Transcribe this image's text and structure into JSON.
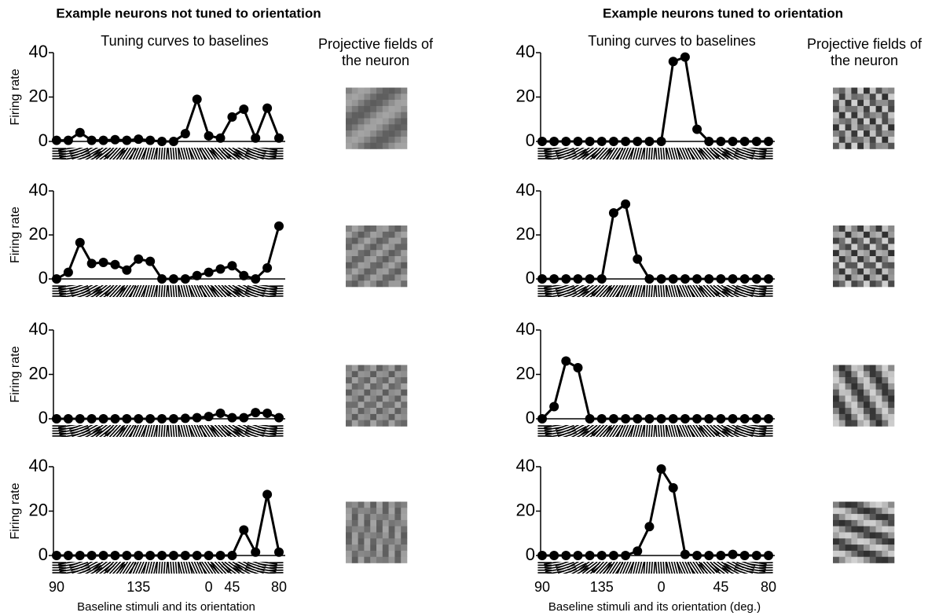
{
  "panels": [
    {
      "title": "Example neurons not tuned to orientation",
      "subtitle": "Tuning curves to baselines",
      "fields_title": [
        "Projective fields of",
        "the neuron"
      ]
    },
    {
      "title": "Example neurons tuned to orientation",
      "subtitle": "Tuning curves to baselines",
      "fields_title": [
        "Projective fields of",
        "the neuron"
      ]
    }
  ],
  "chart_data": [
    {
      "type": "line",
      "ylabel": "Firing rate",
      "color": "#000000",
      "ylim": [
        0,
        40
      ],
      "yticks": [
        0,
        20,
        40
      ],
      "categories": [
        null,
        null,
        null,
        null,
        null,
        null,
        null,
        null,
        null,
        null,
        null,
        null,
        null,
        null,
        null,
        null,
        null,
        null,
        null,
        null
      ],
      "values": [
        0.5,
        0.5,
        4,
        0.5,
        0.5,
        0.8,
        0.5,
        1,
        0.5,
        0,
        0,
        3.5,
        19,
        2.5,
        1.5,
        11,
        14.5,
        1.5,
        15,
        1.5
      ]
    },
    {
      "type": "line",
      "ylabel": "Firing rate",
      "color": "#000000",
      "ylim": [
        0,
        40
      ],
      "yticks": [
        0,
        20,
        40
      ],
      "categories": [
        null,
        null,
        null,
        null,
        null,
        null,
        null,
        null,
        null,
        null,
        null,
        null,
        null,
        null,
        null,
        null,
        null,
        null,
        null,
        null
      ],
      "values": [
        0,
        3,
        16.5,
        7,
        7.5,
        6.5,
        4,
        9,
        8,
        0,
        0,
        0,
        1.5,
        3,
        4.5,
        6,
        1.5,
        0,
        5,
        24
      ]
    },
    {
      "type": "line",
      "ylabel": "Firing rate",
      "color": "#000000",
      "ylim": [
        0,
        40
      ],
      "yticks": [
        0,
        20,
        40
      ],
      "categories": [
        null,
        null,
        null,
        null,
        null,
        null,
        null,
        null,
        null,
        null,
        null,
        null,
        null,
        null,
        null,
        null,
        null,
        null,
        null,
        null
      ],
      "values": [
        0,
        0,
        0,
        0,
        0,
        0,
        0,
        0,
        0,
        0,
        0,
        0.2,
        0.5,
        1,
        2.5,
        0.5,
        0.5,
        2.8,
        2.5,
        0.5
      ]
    },
    {
      "type": "line",
      "ylabel": "Firing rate",
      "xlabel": "Baseline stimuli and its orientation",
      "color": "#000000",
      "ylim": [
        0,
        40
      ],
      "yticks": [
        0,
        20,
        40
      ],
      "categories": [
        "90",
        null,
        null,
        null,
        null,
        null,
        null,
        "135",
        null,
        null,
        null,
        null,
        null,
        "0",
        null,
        "45",
        null,
        null,
        null,
        "80"
      ],
      "values": [
        0,
        0,
        0,
        0,
        0,
        0,
        0,
        0,
        0,
        0,
        0,
        0,
        0,
        0,
        0,
        0,
        11.5,
        1.5,
        27.5,
        1.5
      ]
    },
    {
      "type": "line",
      "ylabel": "",
      "color": "#000000",
      "ylim": [
        0,
        40
      ],
      "yticks": [
        0,
        20,
        40
      ],
      "categories": [
        null,
        null,
        null,
        null,
        null,
        null,
        null,
        null,
        null,
        null,
        null,
        null,
        null,
        null,
        null,
        null,
        null,
        null,
        null,
        null
      ],
      "values": [
        0,
        0,
        0,
        0,
        0,
        0,
        0,
        0,
        0,
        0,
        0,
        36,
        38,
        5.5,
        0,
        0,
        0,
        0,
        0,
        0
      ]
    },
    {
      "type": "line",
      "ylabel": "",
      "color": "#000000",
      "ylim": [
        0,
        40
      ],
      "yticks": [
        0,
        20,
        40
      ],
      "categories": [
        null,
        null,
        null,
        null,
        null,
        null,
        null,
        null,
        null,
        null,
        null,
        null,
        null,
        null,
        null,
        null,
        null,
        null,
        null,
        null
      ],
      "values": [
        0,
        0,
        0,
        0,
        0,
        0,
        30,
        34,
        9,
        0,
        0,
        0,
        0,
        0,
        0,
        0,
        0,
        0,
        0,
        0
      ]
    },
    {
      "type": "line",
      "ylabel": "",
      "color": "#000000",
      "ylim": [
        0,
        40
      ],
      "yticks": [
        0,
        20,
        40
      ],
      "categories": [
        null,
        null,
        null,
        null,
        null,
        null,
        null,
        null,
        null,
        null,
        null,
        null,
        null,
        null,
        null,
        null,
        null,
        null,
        null,
        null
      ],
      "values": [
        0,
        5.5,
        26,
        23,
        0,
        0,
        0,
        0,
        0,
        0,
        0,
        0,
        0,
        0,
        0,
        0,
        0,
        0,
        0,
        0
      ]
    },
    {
      "type": "line",
      "ylabel": "",
      "xlabel": "Baseline stimuli and its orientation (deg.)",
      "color": "#000000",
      "ylim": [
        0,
        40
      ],
      "yticks": [
        0,
        20,
        40
      ],
      "categories": [
        "90",
        null,
        null,
        null,
        null,
        "135",
        null,
        null,
        null,
        null,
        "0",
        null,
        null,
        null,
        null,
        "45",
        null,
        null,
        null,
        "80"
      ],
      "values": [
        0,
        0,
        0,
        0,
        0,
        0,
        0,
        0,
        2,
        13,
        39,
        30.5,
        0.5,
        0,
        0,
        0,
        0.5,
        0,
        0,
        0
      ]
    }
  ]
}
